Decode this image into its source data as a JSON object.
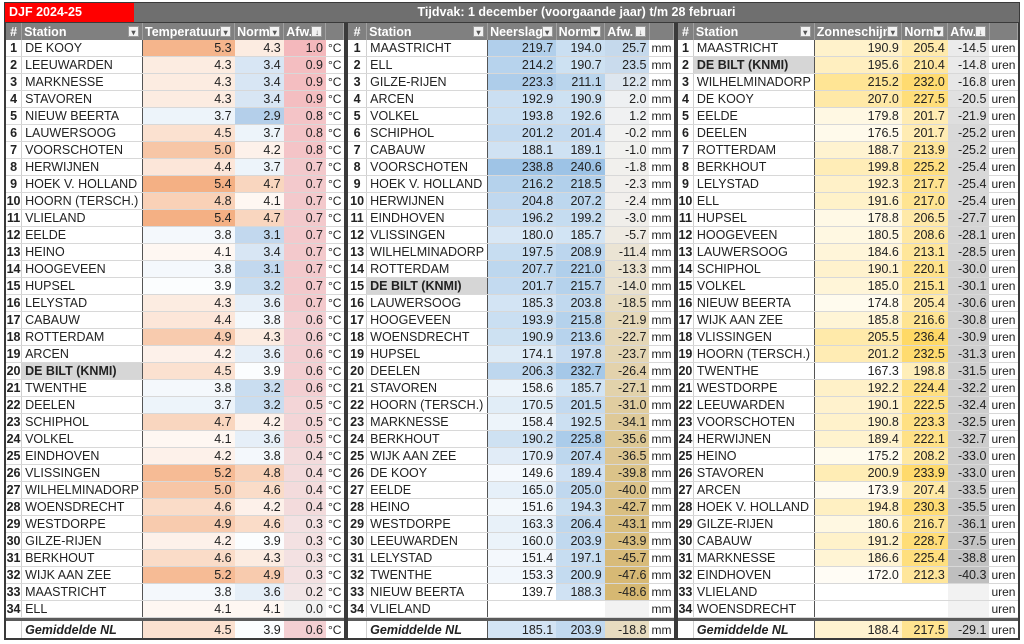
{
  "title": "DJF 2024-25",
  "period": "Tijdvak: 1 december (voorgaande jaar) t/m 28 februari",
  "highlight_station": "DE BILT (KNMI)",
  "icons": {
    "filter": "dropdown-arrow-icon",
    "sort": "sort-descending-icon"
  },
  "sections": [
    {
      "key": "temperature",
      "headers": {
        "num": "#",
        "station": "Station",
        "value": "Temperatuur",
        "norm": "Norm",
        "afw": "Afw."
      },
      "unit": "°C",
      "colors": {
        "high": "#f4b084",
        "low": "#b4cfea",
        "neutral": "#ffffff",
        "afw_high": "#f4b8bc",
        "afw_low": "#f2f2f2"
      },
      "rows": [
        [
          1,
          "DE KOOY",
          "5.3",
          "4.3",
          "1.0"
        ],
        [
          2,
          "LEEUWARDEN",
          "4.3",
          "3.4",
          "0.9"
        ],
        [
          3,
          "MARKNESSE",
          "4.3",
          "3.4",
          "0.9"
        ],
        [
          4,
          "STAVOREN",
          "4.3",
          "3.4",
          "0.9"
        ],
        [
          5,
          "NIEUW BEERTA",
          "3.7",
          "2.9",
          "0.8"
        ],
        [
          6,
          "LAUWERSOOG",
          "4.5",
          "3.7",
          "0.8"
        ],
        [
          7,
          "VOORSCHOTEN",
          "5.0",
          "4.2",
          "0.8"
        ],
        [
          8,
          "HERWIJNEN",
          "4.4",
          "3.7",
          "0.7"
        ],
        [
          9,
          "HOEK V. HOLLAND",
          "5.4",
          "4.7",
          "0.7"
        ],
        [
          10,
          "HOORN (TERSCH.)",
          "4.8",
          "4.1",
          "0.7"
        ],
        [
          11,
          "VLIELAND",
          "5.4",
          "4.7",
          "0.7"
        ],
        [
          12,
          "EELDE",
          "3.8",
          "3.1",
          "0.7"
        ],
        [
          13,
          "HEINO",
          "4.1",
          "3.4",
          "0.7"
        ],
        [
          14,
          "HOOGEVEEN",
          "3.8",
          "3.1",
          "0.7"
        ],
        [
          15,
          "HUPSEL",
          "3.9",
          "3.2",
          "0.7"
        ],
        [
          16,
          "LELYSTAD",
          "4.3",
          "3.6",
          "0.7"
        ],
        [
          17,
          "CABAUW",
          "4.4",
          "3.8",
          "0.6"
        ],
        [
          18,
          "ROTTERDAM",
          "4.9",
          "4.3",
          "0.6"
        ],
        [
          19,
          "ARCEN",
          "4.2",
          "3.6",
          "0.6"
        ],
        [
          20,
          "DE BILT (KNMI)",
          "4.5",
          "3.9",
          "0.6"
        ],
        [
          21,
          "TWENTHE",
          "3.8",
          "3.2",
          "0.6"
        ],
        [
          22,
          "DEELEN",
          "3.7",
          "3.2",
          "0.5"
        ],
        [
          23,
          "SCHIPHOL",
          "4.7",
          "4.2",
          "0.5"
        ],
        [
          24,
          "VOLKEL",
          "4.1",
          "3.6",
          "0.5"
        ],
        [
          25,
          "EINDHOVEN",
          "4.2",
          "3.8",
          "0.4"
        ],
        [
          26,
          "VLISSINGEN",
          "5.2",
          "4.8",
          "0.4"
        ],
        [
          27,
          "WILHELMINADORP",
          "5.0",
          "4.6",
          "0.4"
        ],
        [
          28,
          "WOENSDRECHT",
          "4.6",
          "4.2",
          "0.4"
        ],
        [
          29,
          "WESTDORPE",
          "4.9",
          "4.6",
          "0.3"
        ],
        [
          30,
          "GILZE-RIJEN",
          "4.2",
          "3.9",
          "0.3"
        ],
        [
          31,
          "BERKHOUT",
          "4.6",
          "4.3",
          "0.3"
        ],
        [
          32,
          "WIJK AAN ZEE",
          "5.2",
          "4.9",
          "0.3"
        ],
        [
          33,
          "MAASTRICHT",
          "3.8",
          "3.6",
          "0.2"
        ],
        [
          34,
          "ELL",
          "4.1",
          "4.1",
          "0.0"
        ]
      ],
      "average": {
        "label": "Gemiddelde NL",
        "value": "4.5",
        "norm": "3.9",
        "afw": "0.6"
      }
    },
    {
      "key": "precipitation",
      "headers": {
        "num": "#",
        "station": "Station",
        "value": "Neerslag",
        "norm": "Norm",
        "afw": "Afw."
      },
      "unit": "mm",
      "colors": {
        "high": "#9dc3e6",
        "low": "#ffffff",
        "afw_high": "#c5d9ec",
        "afw_low": "#d6b872",
        "afw_zero": "#f2f2f2"
      },
      "rows": [
        [
          1,
          "MAASTRICHT",
          "219.7",
          "194.0",
          "25.7"
        ],
        [
          2,
          "ELL",
          "214.2",
          "190.7",
          "23.5"
        ],
        [
          3,
          "GILZE-RIJEN",
          "223.3",
          "211.1",
          "12.2"
        ],
        [
          4,
          "ARCEN",
          "192.9",
          "190.9",
          "2.0"
        ],
        [
          5,
          "VOLKEL",
          "193.8",
          "192.6",
          "1.2"
        ],
        [
          6,
          "SCHIPHOL",
          "201.2",
          "201.4",
          "-0.2"
        ],
        [
          7,
          "CABAUW",
          "188.1",
          "189.1",
          "-1.0"
        ],
        [
          8,
          "VOORSCHOTEN",
          "238.8",
          "240.6",
          "-1.8"
        ],
        [
          9,
          "HOEK V. HOLLAND",
          "216.2",
          "218.5",
          "-2.3"
        ],
        [
          10,
          "HERWIJNEN",
          "204.8",
          "207.2",
          "-2.4"
        ],
        [
          11,
          "EINDHOVEN",
          "196.2",
          "199.2",
          "-3.0"
        ],
        [
          12,
          "VLISSINGEN",
          "180.0",
          "185.7",
          "-5.7"
        ],
        [
          13,
          "WILHELMINADORP",
          "197.5",
          "208.9",
          "-11.4"
        ],
        [
          14,
          "ROTTERDAM",
          "207.7",
          "221.0",
          "-13.3"
        ],
        [
          15,
          "DE BILT (KNMI)",
          "201.7",
          "215.7",
          "-14.0"
        ],
        [
          16,
          "LAUWERSOOG",
          "185.3",
          "203.8",
          "-18.5"
        ],
        [
          17,
          "HOOGEVEEN",
          "193.9",
          "215.8",
          "-21.9"
        ],
        [
          18,
          "WOENSDRECHT",
          "190.9",
          "213.6",
          "-22.7"
        ],
        [
          19,
          "HUPSEL",
          "174.1",
          "197.8",
          "-23.7"
        ],
        [
          20,
          "DEELEN",
          "206.3",
          "232.7",
          "-26.4"
        ],
        [
          21,
          "STAVOREN",
          "158.6",
          "185.7",
          "-27.1"
        ],
        [
          22,
          "HOORN (TERSCH.)",
          "170.5",
          "201.5",
          "-31.0"
        ],
        [
          23,
          "MARKNESSE",
          "158.4",
          "192.5",
          "-34.1"
        ],
        [
          24,
          "BERKHOUT",
          "190.2",
          "225.8",
          "-35.6"
        ],
        [
          25,
          "WIJK AAN ZEE",
          "170.9",
          "207.4",
          "-36.5"
        ],
        [
          26,
          "DE KOOY",
          "149.6",
          "189.4",
          "-39.8"
        ],
        [
          27,
          "EELDE",
          "165.0",
          "205.0",
          "-40.0"
        ],
        [
          28,
          "HEINO",
          "151.6",
          "194.3",
          "-42.7"
        ],
        [
          29,
          "WESTDORPE",
          "163.3",
          "206.4",
          "-43.1"
        ],
        [
          30,
          "LEEUWARDEN",
          "160.0",
          "203.9",
          "-43.9"
        ],
        [
          31,
          "LELYSTAD",
          "151.4",
          "197.1",
          "-45.7"
        ],
        [
          32,
          "TWENTHE",
          "153.3",
          "200.9",
          "-47.6"
        ],
        [
          33,
          "NIEUW BEERTA",
          "139.7",
          "188.3",
          "-48.6"
        ],
        [
          34,
          "VLIELAND",
          "",
          "",
          ""
        ]
      ],
      "average": {
        "label": "Gemiddelde NL",
        "value": "185.1",
        "norm": "203.9",
        "afw": "-18.8"
      }
    },
    {
      "key": "sunshine",
      "headers": {
        "num": "#",
        "station": "Station",
        "value": "Zonneschijn",
        "norm": "Norm",
        "afw": "Afw."
      },
      "unit": "uren",
      "colors": {
        "high": "#ffd966",
        "low": "#ffffff",
        "afw_high": "#ebebeb",
        "afw_low": "#bfbfbf"
      },
      "rows": [
        [
          1,
          "MAASTRICHT",
          "190.9",
          "205.4",
          "-14.5"
        ],
        [
          2,
          "DE BILT (KNMI)",
          "195.6",
          "210.4",
          "-14.8"
        ],
        [
          3,
          "WILHELMINADORP",
          "215.2",
          "232.0",
          "-16.8"
        ],
        [
          4,
          "DE KOOY",
          "207.0",
          "227.5",
          "-20.5"
        ],
        [
          5,
          "EELDE",
          "179.8",
          "201.7",
          "-21.9"
        ],
        [
          6,
          "DEELEN",
          "176.5",
          "201.7",
          "-25.2"
        ],
        [
          7,
          "ROTTERDAM",
          "188.7",
          "213.9",
          "-25.2"
        ],
        [
          8,
          "BERKHOUT",
          "199.8",
          "225.2",
          "-25.4"
        ],
        [
          9,
          "LELYSTAD",
          "192.3",
          "217.7",
          "-25.4"
        ],
        [
          10,
          "ELL",
          "191.6",
          "217.0",
          "-25.4"
        ],
        [
          11,
          "HUPSEL",
          "178.8",
          "206.5",
          "-27.7"
        ],
        [
          12,
          "HOOGEVEEN",
          "180.5",
          "208.6",
          "-28.1"
        ],
        [
          13,
          "LAUWERSOOG",
          "184.6",
          "213.1",
          "-28.5"
        ],
        [
          14,
          "SCHIPHOL",
          "190.1",
          "220.1",
          "-30.0"
        ],
        [
          15,
          "VOLKEL",
          "185.0",
          "215.1",
          "-30.1"
        ],
        [
          16,
          "NIEUW BEERTA",
          "174.8",
          "205.4",
          "-30.6"
        ],
        [
          17,
          "WIJK AAN ZEE",
          "185.8",
          "216.6",
          "-30.8"
        ],
        [
          18,
          "VLISSINGEN",
          "205.5",
          "236.4",
          "-30.9"
        ],
        [
          19,
          "HOORN (TERSCH.)",
          "201.2",
          "232.5",
          "-31.3"
        ],
        [
          20,
          "TWENTHE",
          "167.3",
          "198.8",
          "-31.5"
        ],
        [
          21,
          "WESTDORPE",
          "192.2",
          "224.4",
          "-32.2"
        ],
        [
          22,
          "LEEUWARDEN",
          "190.1",
          "222.5",
          "-32.4"
        ],
        [
          23,
          "VOORSCHOTEN",
          "190.8",
          "223.3",
          "-32.5"
        ],
        [
          24,
          "HERWIJNEN",
          "189.4",
          "222.1",
          "-32.7"
        ],
        [
          25,
          "HEINO",
          "175.2",
          "208.2",
          "-33.0"
        ],
        [
          26,
          "STAVOREN",
          "200.9",
          "233.9",
          "-33.0"
        ],
        [
          27,
          "ARCEN",
          "173.9",
          "207.4",
          "-33.5"
        ],
        [
          28,
          "HOEK V. HOLLAND",
          "194.8",
          "230.3",
          "-35.5"
        ],
        [
          29,
          "GILZE-RIJEN",
          "180.6",
          "216.7",
          "-36.1"
        ],
        [
          30,
          "CABAUW",
          "191.2",
          "228.7",
          "-37.5"
        ],
        [
          31,
          "MARKNESSE",
          "186.6",
          "225.4",
          "-38.8"
        ],
        [
          32,
          "EINDHOVEN",
          "172.0",
          "212.3",
          "-40.3"
        ],
        [
          33,
          "VLIELAND",
          "",
          "",
          ""
        ],
        [
          34,
          "WOENSDRECHT",
          "",
          "",
          ""
        ]
      ],
      "average": {
        "label": "Gemiddelde NL",
        "value": "188.4",
        "norm": "217.5",
        "afw": "-29.1"
      }
    }
  ]
}
